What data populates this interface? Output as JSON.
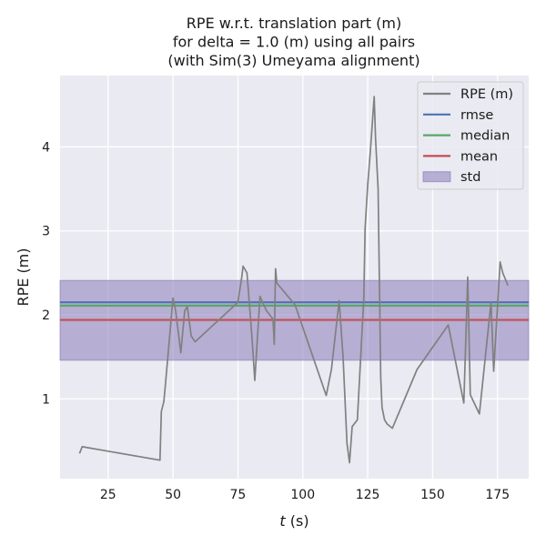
{
  "chart_data": {
    "type": "line",
    "title": [
      "RPE w.r.t. translation part (m)",
      "for delta = 1.0 (m) using all pairs",
      "(with Sim(3) Umeyama alignment)"
    ],
    "xlabel_italic": "t",
    "xlabel_unit": " (s)",
    "ylabel": "RPE (m)",
    "xlim": [
      6.5,
      187
    ],
    "ylim": [
      0.05,
      4.85
    ],
    "xticks": [
      25,
      50,
      75,
      100,
      125,
      150,
      175
    ],
    "yticks": [
      1,
      2,
      3,
      4
    ],
    "grid": true,
    "legend_position": "top-right",
    "colors": {
      "background": "#eaeaf2",
      "grid": "#ffffff",
      "rpe": "#808080",
      "rmse": "#4c72b0",
      "median": "#55a868",
      "mean": "#c44e52",
      "std": "#8172b3"
    },
    "series": [
      {
        "name": "RPE (m)",
        "x": [
          14,
          15,
          45,
          45.5,
          46.5,
          47,
          50,
          51,
          53,
          54.5,
          55.5,
          57,
          58.5,
          75,
          76.5,
          77,
          78.5,
          79.5,
          80.5,
          81.5,
          83.5,
          86,
          88.5,
          89,
          89.5,
          90,
          97,
          109,
          111,
          114,
          115.5,
          117,
          118,
          119,
          121,
          123.5,
          124,
          125,
          126,
          127.5,
          128,
          129,
          130,
          130.5,
          131.5,
          132.5,
          134.5,
          144,
          156,
          162,
          163.5,
          164.5,
          166,
          168,
          172.5,
          173.5,
          176,
          177,
          179
        ],
        "y": [
          0.35,
          0.43,
          0.27,
          0.85,
          0.97,
          1.15,
          2.2,
          2.05,
          1.55,
          2.05,
          2.1,
          1.75,
          1.68,
          2.15,
          2.45,
          2.58,
          2.5,
          2.1,
          1.7,
          1.22,
          2.22,
          2.05,
          1.95,
          1.65,
          2.55,
          2.38,
          2.12,
          1.04,
          1.35,
          2.17,
          1.5,
          0.47,
          0.24,
          0.67,
          0.75,
          2.2,
          3.03,
          3.55,
          3.95,
          4.6,
          4.1,
          3.5,
          1.25,
          0.9,
          0.75,
          0.7,
          0.65,
          1.35,
          1.88,
          0.95,
          2.45,
          1.05,
          0.95,
          0.82,
          2.15,
          1.33,
          2.63,
          2.5,
          2.35
        ]
      },
      {
        "name": "rmse",
        "y": 2.15
      },
      {
        "name": "median",
        "y": 2.11
      },
      {
        "name": "mean",
        "y": 1.94
      },
      {
        "name": "std",
        "y_low": 1.46,
        "y_high": 2.41
      }
    ]
  }
}
